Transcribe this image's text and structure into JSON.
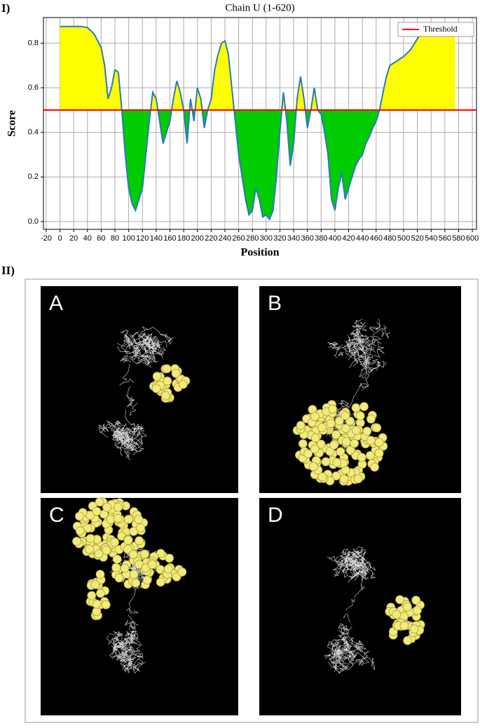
{
  "chart_data": {
    "type": "line",
    "title": "Chain U  (1-620)",
    "x_label": "Position",
    "y_label": "Score",
    "panel_label": "I)",
    "x": [
      0,
      10,
      20,
      30,
      40,
      50,
      60,
      65,
      70,
      75,
      80,
      85,
      90,
      95,
      100,
      105,
      110,
      115,
      120,
      125,
      130,
      135,
      140,
      145,
      150,
      155,
      160,
      165,
      170,
      175,
      180,
      185,
      190,
      195,
      200,
      205,
      210,
      215,
      220,
      225,
      230,
      235,
      240,
      245,
      250,
      255,
      260,
      265,
      270,
      275,
      280,
      285,
      290,
      295,
      300,
      305,
      310,
      315,
      320,
      325,
      330,
      335,
      340,
      345,
      350,
      355,
      360,
      365,
      370,
      375,
      380,
      385,
      390,
      395,
      400,
      405,
      410,
      415,
      420,
      425,
      430,
      435,
      440,
      445,
      450,
      455,
      460,
      465,
      470,
      475,
      480,
      490,
      500,
      510,
      520,
      530,
      540,
      550,
      560,
      570,
      575
    ],
    "series": [
      {
        "color": "#2a7ab8",
        "values": [
          0.875,
          0.875,
          0.875,
          0.875,
          0.87,
          0.84,
          0.78,
          0.7,
          0.55,
          0.6,
          0.68,
          0.67,
          0.5,
          0.3,
          0.15,
          0.08,
          0.05,
          0.1,
          0.15,
          0.3,
          0.45,
          0.58,
          0.55,
          0.45,
          0.35,
          0.4,
          0.45,
          0.55,
          0.63,
          0.58,
          0.5,
          0.35,
          0.55,
          0.45,
          0.6,
          0.55,
          0.42,
          0.5,
          0.55,
          0.68,
          0.75,
          0.8,
          0.81,
          0.75,
          0.6,
          0.45,
          0.3,
          0.2,
          0.1,
          0.03,
          0.05,
          0.15,
          0.1,
          0.02,
          0.03,
          0.01,
          0.05,
          0.2,
          0.4,
          0.58,
          0.45,
          0.25,
          0.35,
          0.55,
          0.65,
          0.55,
          0.42,
          0.5,
          0.6,
          0.5,
          0.48,
          0.4,
          0.3,
          0.1,
          0.05,
          0.15,
          0.22,
          0.1,
          0.15,
          0.2,
          0.25,
          0.28,
          0.3,
          0.35,
          0.38,
          0.42,
          0.45,
          0.5,
          0.58,
          0.65,
          0.7,
          0.72,
          0.74,
          0.77,
          0.82,
          0.86,
          0.87,
          0.87,
          0.87,
          0.87,
          0.87
        ]
      }
    ],
    "above_color": "#ffff00",
    "below_color": "#00cc00",
    "threshold": {
      "name": "Threshold",
      "value": 0.5,
      "color": "#ff0000"
    },
    "legend_position": "upper right",
    "grid": true,
    "xlim": [
      -24,
      606
    ],
    "xticks": [
      -20,
      0,
      20,
      40,
      60,
      80,
      100,
      120,
      140,
      160,
      180,
      200,
      220,
      240,
      260,
      280,
      300,
      320,
      340,
      360,
      380,
      400,
      420,
      440,
      460,
      480,
      500,
      520,
      540,
      560,
      580,
      600
    ],
    "ylim": [
      -0.035,
      0.915
    ],
    "yticks": [
      {
        "value": 0,
        "label": "0.0"
      },
      0.2,
      0.4,
      0.6,
      0.8
    ]
  },
  "structures": {
    "panel_label": "II)",
    "panels": [
      "A",
      "B",
      "C",
      "D"
    ]
  }
}
